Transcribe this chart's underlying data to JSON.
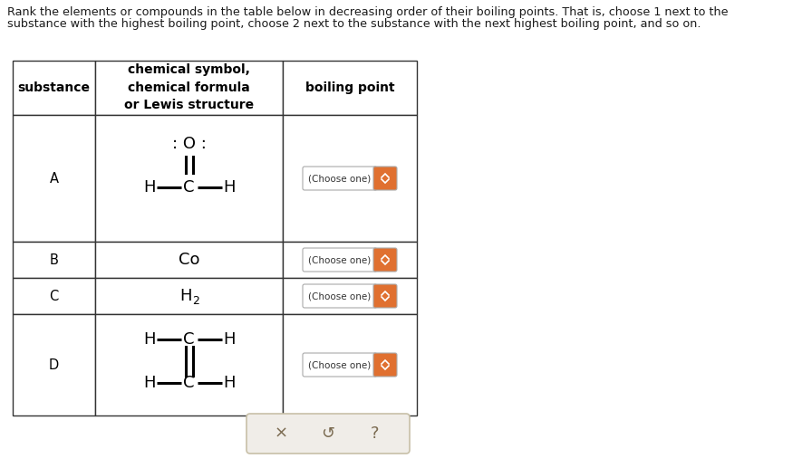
{
  "title_line1": "Rank the elements or compounds in the table below in decreasing order of their boiling points. That is, choose 1 next to the",
  "title_line2": "substance with the highest boiling point, choose 2 next to the substance with the next highest boiling point, and so on.",
  "background_color": "#ffffff",
  "dropdown_arrow_bg": "#e07030",
  "dropdown_text": "(Choose one)",
  "col1_header": "substance",
  "col2_header": "chemical symbol,\nchemical formula\nor Lewis structure",
  "col3_header": "boiling point",
  "footer_bg": "#f0ede8",
  "footer_border": "#c8c0a8",
  "footer_buttons": [
    "×",
    "↺",
    "?"
  ],
  "tl": 14,
  "tr": 460,
  "tt": 450,
  "tb": 58,
  "c1": 105,
  "c2": 312,
  "r0": 450,
  "r1": 390,
  "r2": 250,
  "r3": 210,
  "r4": 170,
  "r5": 58
}
